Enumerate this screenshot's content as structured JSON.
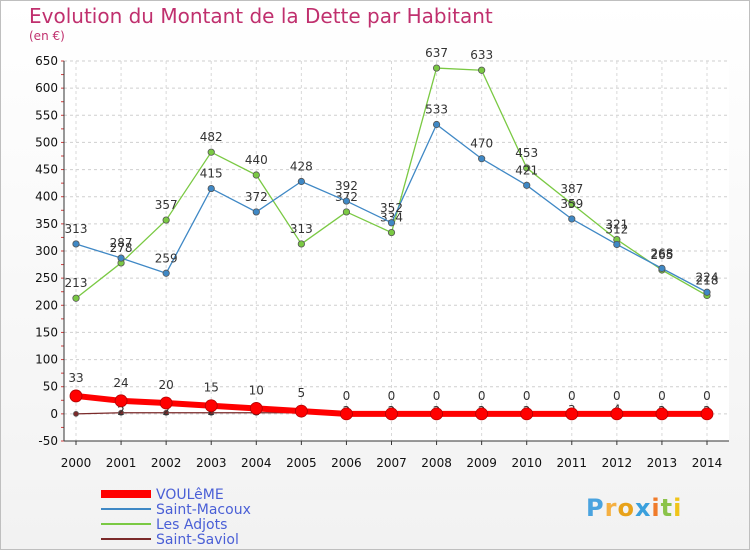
{
  "title": "Evolution du Montant de la Dette par Habitant",
  "subtitle": "(en €)",
  "logo": [
    "P",
    "r",
    "o",
    "x",
    "i",
    "t",
    "i"
  ],
  "chart_data": {
    "type": "line",
    "x": [
      "2000",
      "2001",
      "2002",
      "2003",
      "2004",
      "2005",
      "2006",
      "2007",
      "2008",
      "2009",
      "2010",
      "2011",
      "2012",
      "2013",
      "2014"
    ],
    "ylim": [
      -50,
      650
    ],
    "yticks": [
      "-50",
      "0",
      "50",
      "100",
      "150",
      "200",
      "250",
      "300",
      "350",
      "400",
      "450",
      "500",
      "550",
      "600",
      "650"
    ],
    "grid": "horizontal dashed",
    "legend_position": "bottom-left",
    "series": [
      {
        "name": "VOULêME",
        "color": "#ff0000",
        "values": [
          33,
          24,
          20,
          15,
          10,
          5,
          0,
          0,
          0,
          0,
          0,
          0,
          0,
          0,
          0
        ],
        "labels": [
          "33",
          "24",
          "20",
          "15",
          "10",
          "5",
          "0",
          "0",
          "0",
          "0",
          "0",
          "0",
          "0",
          "0",
          "0"
        ]
      },
      {
        "name": "Saint-Macoux",
        "color": "#3f88c5",
        "values": [
          313,
          287,
          259,
          415,
          372,
          428,
          392,
          352,
          533,
          470,
          421,
          359,
          312,
          268,
          224
        ],
        "labels": [
          "313",
          "287",
          "259",
          "415",
          "372",
          "428",
          "392",
          "352",
          "533",
          "470",
          "421",
          "359",
          "312",
          "268",
          "224"
        ]
      },
      {
        "name": "Les Adjots",
        "color": "#7ac943",
        "values": [
          213,
          278,
          357,
          482,
          440,
          313,
          372,
          334,
          637,
          633,
          453,
          387,
          321,
          265,
          218
        ],
        "labels": [
          "213",
          "278",
          "357",
          "482",
          "440",
          "313",
          "372",
          "334",
          "637",
          "633",
          "453",
          "387",
          "321",
          "265",
          "218"
        ]
      },
      {
        "name": "Saint-Saviol",
        "color": "#7b2a2a",
        "values": [
          0,
          2,
          2,
          2,
          2,
          2,
          2,
          2,
          2,
          2,
          2,
          3,
          4,
          2,
          2
        ],
        "labels": [
          "0",
          "2",
          "2",
          "2",
          "2",
          "2",
          "2",
          "2",
          "2",
          "2",
          "2",
          "3",
          "4",
          "2",
          "2"
        ]
      }
    ]
  }
}
